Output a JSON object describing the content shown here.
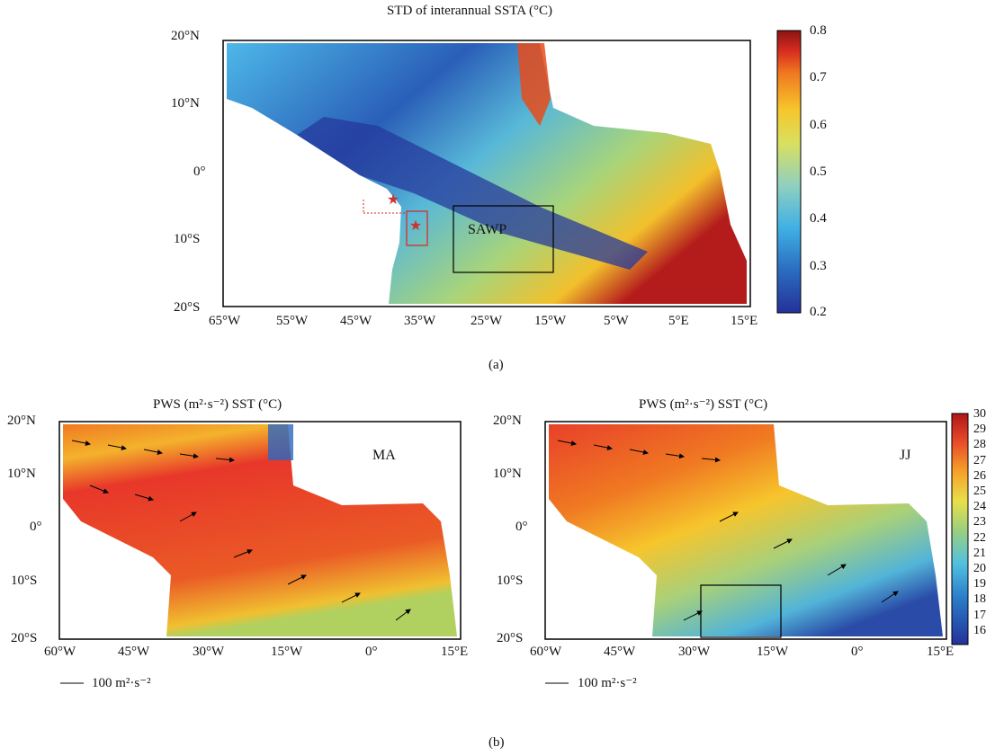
{
  "panel_a": {
    "title": "STD of interannual SSTA (°C)",
    "lat_labels": [
      "20°N",
      "10°N",
      "0°",
      "10°S",
      "20°S"
    ],
    "lon_labels": [
      "65°W",
      "55°W",
      "45°W",
      "35°W",
      "25°W",
      "15°W",
      "5°W",
      "5°E",
      "15°E"
    ],
    "box_label": "SAWP",
    "colorbar": {
      "ticks": [
        "0.8",
        "0.7",
        "0.6",
        "0.5",
        "0.4",
        "0.3",
        "0.2"
      ],
      "range": [
        0.2,
        0.8
      ],
      "colors": [
        "#24319a",
        "#2a6cc0",
        "#3fb0e4",
        "#8fd0c0",
        "#d8e060",
        "#f6c62c",
        "#f07820",
        "#d62a1e",
        "#8a1414"
      ]
    },
    "caption": "(a)"
  },
  "panel_b": {
    "left": {
      "title": "PWS (m²·s⁻²) SST (°C)",
      "season": "MA",
      "scale_label": "100 m²·s⁻²"
    },
    "right": {
      "title": "PWS (m²·s⁻²) SST (°C)",
      "season": "JJ",
      "scale_label": "100 m²·s⁻²"
    },
    "lat_labels": [
      "20°N",
      "10°N",
      "0°",
      "10°S",
      "20°S"
    ],
    "lon_labels": [
      "60°W",
      "45°W",
      "30°W",
      "15°W",
      "0°",
      "15°E"
    ],
    "colorbar": {
      "ticks": [
        "30",
        "29",
        "28",
        "27",
        "26",
        "25",
        "24",
        "23",
        "22",
        "21",
        "20",
        "19",
        "18",
        "17",
        "16"
      ],
      "range": [
        16,
        30
      ]
    },
    "caption": "(b)"
  }
}
